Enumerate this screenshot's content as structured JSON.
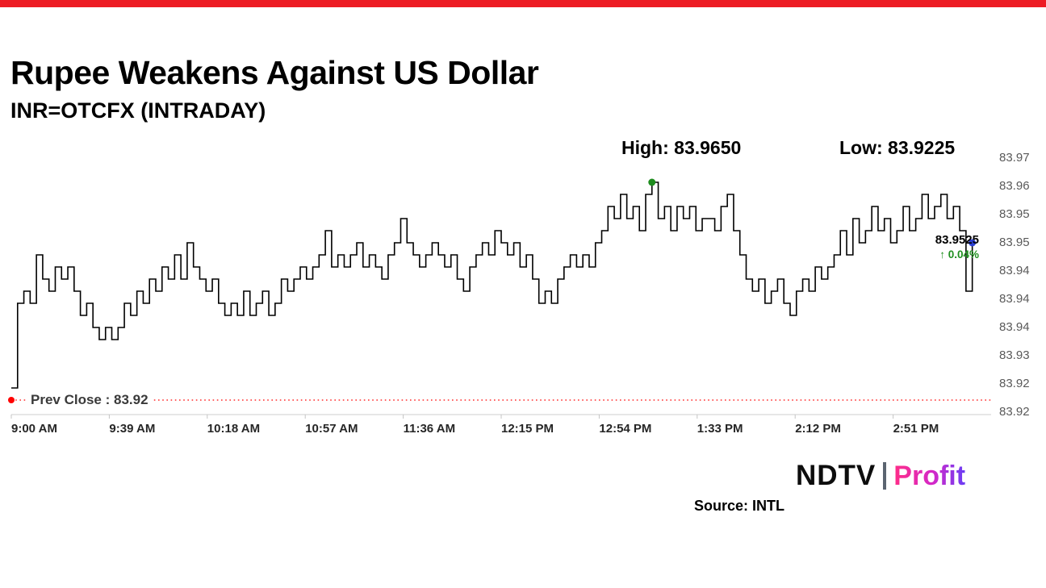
{
  "top_bar": {
    "color": "#ed1c24"
  },
  "header": {
    "title": "Rupee Weakens Against US Dollar",
    "subtitle": "INR=OTCFX (INTRADAY)"
  },
  "chart_annotations": {
    "high": "High: 83.9650",
    "low": "Low: 83.9225",
    "prev_close": "Prev Close : 83.92",
    "last_price": "83.9525",
    "last_change": "↑ 0.04%"
  },
  "footer": {
    "source": "Source: INTL",
    "brand_ndtv": "NDTV",
    "brand_profit": "Profit"
  },
  "chart_data": {
    "type": "line",
    "style": "step",
    "title": "Rupee Weakens Against US Dollar",
    "symbol": "INR=OTCFX",
    "interval": "INTRADAY",
    "start_time": "9:00 AM",
    "step_minutes": 2.5,
    "x_total_minutes": 390,
    "x_tick_step_minutes": 39,
    "x_tick_labels": [
      "9:00 AM",
      "9:39 AM",
      "10:18 AM",
      "10:57 AM",
      "11:36 AM",
      "12:15 PM",
      "12:54 PM",
      "1:33 PM",
      "2:12 PM",
      "2:51 PM"
    ],
    "y_tick_labels": [
      "83.97",
      "83.96",
      "83.95",
      "83.95",
      "83.94",
      "83.94",
      "83.94",
      "83.93",
      "83.92",
      "83.92"
    ],
    "y_domain": [
      83.9175,
      83.97
    ],
    "prev_close": 83.92,
    "high": {
      "value": 83.965
    },
    "low": {
      "value": 83.9225
    },
    "last": {
      "value": 83.9525,
      "change_pct": 0.04
    },
    "line_color": "#000000",
    "prev_close_color": "#ff0000",
    "high_dot_color": "#1e8c1e",
    "last_dot_color": "#2b3fd4",
    "axis_color": "#d6d6d6",
    "values": [
      83.9225,
      83.94,
      83.9425,
      83.94,
      83.95,
      83.945,
      83.9425,
      83.9475,
      83.945,
      83.9475,
      83.9425,
      83.9375,
      83.94,
      83.935,
      83.9325,
      83.935,
      83.9325,
      83.935,
      83.94,
      83.9375,
      83.9425,
      83.94,
      83.945,
      83.9425,
      83.9475,
      83.945,
      83.95,
      83.945,
      83.9525,
      83.9475,
      83.945,
      83.9425,
      83.945,
      83.94,
      83.9375,
      83.94,
      83.9375,
      83.9425,
      83.9375,
      83.94,
      83.9425,
      83.9375,
      83.94,
      83.945,
      83.9425,
      83.945,
      83.9475,
      83.945,
      83.9475,
      83.95,
      83.955,
      83.9475,
      83.95,
      83.9475,
      83.95,
      83.9525,
      83.9475,
      83.95,
      83.9475,
      83.945,
      83.95,
      83.9525,
      83.9575,
      83.9525,
      83.95,
      83.9475,
      83.95,
      83.9525,
      83.95,
      83.9475,
      83.95,
      83.945,
      83.9425,
      83.9475,
      83.95,
      83.9525,
      83.95,
      83.955,
      83.9525,
      83.95,
      83.9525,
      83.9475,
      83.95,
      83.945,
      83.94,
      83.9425,
      83.94,
      83.945,
      83.9475,
      83.95,
      83.9475,
      83.95,
      83.9475,
      83.9525,
      83.955,
      83.96,
      83.9575,
      83.9625,
      83.9575,
      83.96,
      83.955,
      83.9625,
      83.965,
      83.9575,
      83.96,
      83.955,
      83.96,
      83.9575,
      83.96,
      83.955,
      83.9575,
      83.9575,
      83.955,
      83.96,
      83.9625,
      83.955,
      83.95,
      83.945,
      83.9425,
      83.945,
      83.94,
      83.9425,
      83.945,
      83.94,
      83.9375,
      83.9425,
      83.945,
      83.9425,
      83.9475,
      83.945,
      83.9475,
      83.95,
      83.955,
      83.95,
      83.9575,
      83.9525,
      83.955,
      83.96,
      83.955,
      83.9575,
      83.9525,
      83.955,
      83.96,
      83.955,
      83.9575,
      83.9625,
      83.9575,
      83.96,
      83.9625,
      83.9575,
      83.96,
      83.955,
      83.9425,
      83.9525
    ]
  }
}
